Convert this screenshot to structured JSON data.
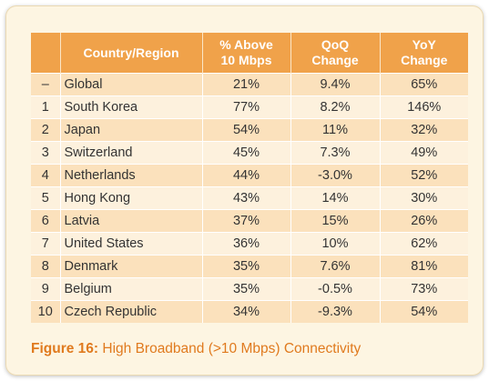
{
  "table": {
    "headers": {
      "country": "Country/Region",
      "above10_line1": "% Above",
      "above10_line2": "10 Mbps",
      "qoq_line1": "QoQ",
      "qoq_line2": "Change",
      "yoy_line1": "YoY",
      "yoy_line2": "Change"
    },
    "rows": [
      {
        "rank": "–",
        "country": "Global",
        "above10": "21%",
        "qoq": "9.4%",
        "yoy": "65%"
      },
      {
        "rank": "1",
        "country": "South Korea",
        "above10": "77%",
        "qoq": "8.2%",
        "yoy": "146%"
      },
      {
        "rank": "2",
        "country": "Japan",
        "above10": "54%",
        "qoq": "11%",
        "yoy": "32%"
      },
      {
        "rank": "3",
        "country": "Switzerland",
        "above10": "45%",
        "qoq": "7.3%",
        "yoy": "49%"
      },
      {
        "rank": "4",
        "country": "Netherlands",
        "above10": "44%",
        "qoq": "-3.0%",
        "yoy": "52%"
      },
      {
        "rank": "5",
        "country": "Hong Kong",
        "above10": "43%",
        "qoq": "14%",
        "yoy": "30%"
      },
      {
        "rank": "6",
        "country": "Latvia",
        "above10": "37%",
        "qoq": "15%",
        "yoy": "26%"
      },
      {
        "rank": "7",
        "country": "United States",
        "above10": "36%",
        "qoq": "10%",
        "yoy": "62%"
      },
      {
        "rank": "8",
        "country": "Denmark",
        "above10": "35%",
        "qoq": "7.6%",
        "yoy": "81%"
      },
      {
        "rank": "9",
        "country": "Belgium",
        "above10": "35%",
        "qoq": "-0.5%",
        "yoy": "73%"
      },
      {
        "rank": "10",
        "country": "Czech Republic",
        "above10": "34%",
        "qoq": "-9.3%",
        "yoy": "54%"
      }
    ]
  },
  "caption": {
    "label": "Figure 16:",
    "text": " High Broadband (>10 Mbps) Connectivity"
  }
}
